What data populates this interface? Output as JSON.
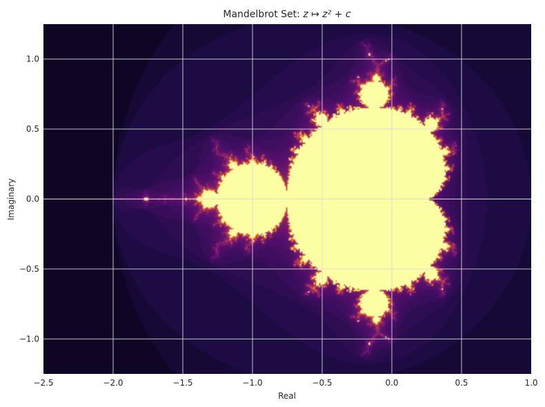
{
  "chart_data": {
    "type": "heatmap",
    "title_prefix": "Mandelbrot Set: ",
    "title_math": "z ↦ z² + c",
    "xlabel": "Real",
    "ylabel": "Imaginary",
    "xlim": [
      -2.5,
      1.0
    ],
    "ylim": [
      -1.25,
      1.25
    ],
    "x_ticks": [
      -2.5,
      -2.0,
      -1.5,
      -1.0,
      -0.5,
      0.0,
      0.5,
      1.0
    ],
    "x_tick_labels": [
      "−2.5",
      "−2.0",
      "−1.5",
      "−1.0",
      "−0.5",
      "0.0",
      "0.5",
      "1.0"
    ],
    "y_ticks": [
      1.0,
      0.5,
      0.0,
      -0.5,
      -1.0
    ],
    "y_tick_labels": [
      "1.0",
      "0.5",
      "0.0",
      "−0.5",
      "−1.0"
    ],
    "grid": true,
    "colormap": "inferno",
    "colors": {
      "set_interior": "#fcfea4",
      "background": "#000004",
      "grid": "#d9d9d9"
    }
  }
}
